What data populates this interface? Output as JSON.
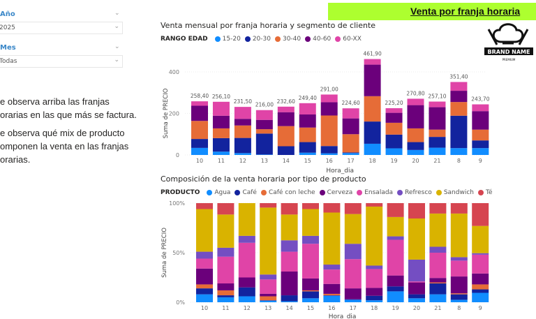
{
  "header": {
    "title": "Venta por franja horaria"
  },
  "logo": {
    "text": "BRAND NAME",
    "subtext": "PREMIUM"
  },
  "slicers": [
    {
      "label": "Año",
      "value": "2025"
    },
    {
      "label": "Mes",
      "value": "Todas"
    }
  ],
  "notes": [
    [
      "e observa arriba las franjas",
      "orarias en las que más se factura."
    ],
    [
      "e observa qué mix de producto",
      "omponen la venta en las franjas",
      "orarias."
    ]
  ],
  "chart_data": [
    {
      "type": "bar",
      "stacked": true,
      "title": "Venta mensual por franja horaria y segmento de cliente",
      "legend_title": "RANGO EDAD",
      "xlabel": "Hora_dia",
      "ylabel": "Suma de PRECIO",
      "ylim": [
        0,
        470
      ],
      "yticks": [
        0,
        200,
        400
      ],
      "ytick_labels": [
        "0",
        "200",
        "400"
      ],
      "categories": [
        "10",
        "11",
        "12",
        "13",
        "14",
        "15",
        "16",
        "17",
        "18",
        "19",
        "20",
        "21",
        "8",
        "9"
      ],
      "totals": [
        "258,40",
        "256,10",
        "231,50",
        "216,00",
        "232,60",
        "249,40",
        "291,00",
        "224,60",
        "461,90",
        "225,20",
        "270,80",
        "257,10",
        "351,40",
        "243,70"
      ],
      "series": [
        {
          "name": "15-20",
          "color": "#118DFF",
          "values": [
            34,
            16,
            9,
            2,
            0,
            11,
            8,
            9,
            54,
            32,
            24,
            35,
            33,
            33
          ]
        },
        {
          "name": "20-30",
          "color": "#12239E",
          "values": [
            43,
            65,
            73,
            101,
            42,
            51,
            35,
            3,
            107,
            66,
            38,
            52,
            156,
            37
          ]
        },
        {
          "name": "30-40",
          "color": "#E66C37",
          "values": [
            87,
            47,
            60,
            21,
            97,
            70,
            147,
            88,
            122,
            57,
            66,
            35,
            66,
            52
          ]
        },
        {
          "name": "40-60",
          "color": "#6B007B",
          "values": [
            73,
            61,
            32,
            45,
            67,
            63,
            64,
            76,
            152,
            48,
            112,
            108,
            54,
            89
          ]
        },
        {
          "name": "60-XX",
          "color": "#E044A7",
          "values": [
            21.4,
            67.1,
            57.5,
            47,
            26.6,
            54.4,
            37,
            48.6,
            26.9,
            22.2,
            30.8,
            27.1,
            42.4,
            32.7
          ]
        }
      ]
    },
    {
      "type": "bar",
      "stacked": true,
      "normalized": true,
      "title": "Composición de la venta horaria por tipo de producto",
      "legend_title": "PRODUCTO",
      "xlabel": "Hora_dia",
      "ylabel": "Suma de PRECIO",
      "ylim": [
        0,
        100
      ],
      "yticks": [
        0,
        50,
        100
      ],
      "ytick_labels": [
        "0%",
        "50%",
        "100%"
      ],
      "categories": [
        "10",
        "11",
        "12",
        "13",
        "14",
        "15",
        "16",
        "17",
        "18",
        "19",
        "20",
        "21",
        "8",
        "9"
      ],
      "series": [
        {
          "name": "Agua",
          "color": "#118DFF",
          "values": [
            8,
            5,
            6,
            1.5,
            1,
            4,
            6.5,
            2.5,
            2,
            11,
            4,
            8,
            2.5,
            9.5
          ]
        },
        {
          "name": "Café",
          "color": "#12239E",
          "values": [
            6,
            2,
            9,
            0.5,
            6,
            7,
            0.5,
            0.5,
            4.5,
            5,
            4,
            11,
            5.5,
            3.5
          ]
        },
        {
          "name": "Café con leche",
          "color": "#E66C37",
          "values": [
            4,
            5,
            0,
            4,
            0,
            1,
            1.5,
            0,
            0,
            0,
            0,
            1,
            1,
            5
          ]
        },
        {
          "name": "Cerveza",
          "color": "#6B007B",
          "values": [
            16,
            7,
            10,
            2.5,
            24,
            12,
            10,
            11,
            8,
            11,
            12,
            4.5,
            17,
            11
          ]
        },
        {
          "name": "Ensalada",
          "color": "#E044A7",
          "values": [
            10,
            27,
            35,
            14.5,
            20,
            35,
            14.5,
            29.5,
            19,
            36,
            1,
            25.5,
            16,
            19
          ]
        },
        {
          "name": "Refresco",
          "color": "#744EC2",
          "values": [
            7,
            9,
            7,
            5,
            11.5,
            8,
            5,
            15.5,
            3.5,
            3.5,
            22,
            6,
            3.5,
            1.5
          ]
        },
        {
          "name": "Sandwich",
          "color": "#D9B300",
          "values": [
            43,
            33.5,
            33,
            67.5,
            26,
            27,
            52.5,
            30,
            59.5,
            19.5,
            41.5,
            33.5,
            44,
            27.5
          ]
        },
        {
          "name": "Té",
          "color": "#D64550",
          "values": [
            6,
            11.5,
            0,
            4.5,
            11.5,
            6,
            9.5,
            11,
            3.5,
            14,
            15.5,
            10.5,
            10.5,
            23
          ]
        }
      ]
    }
  ]
}
